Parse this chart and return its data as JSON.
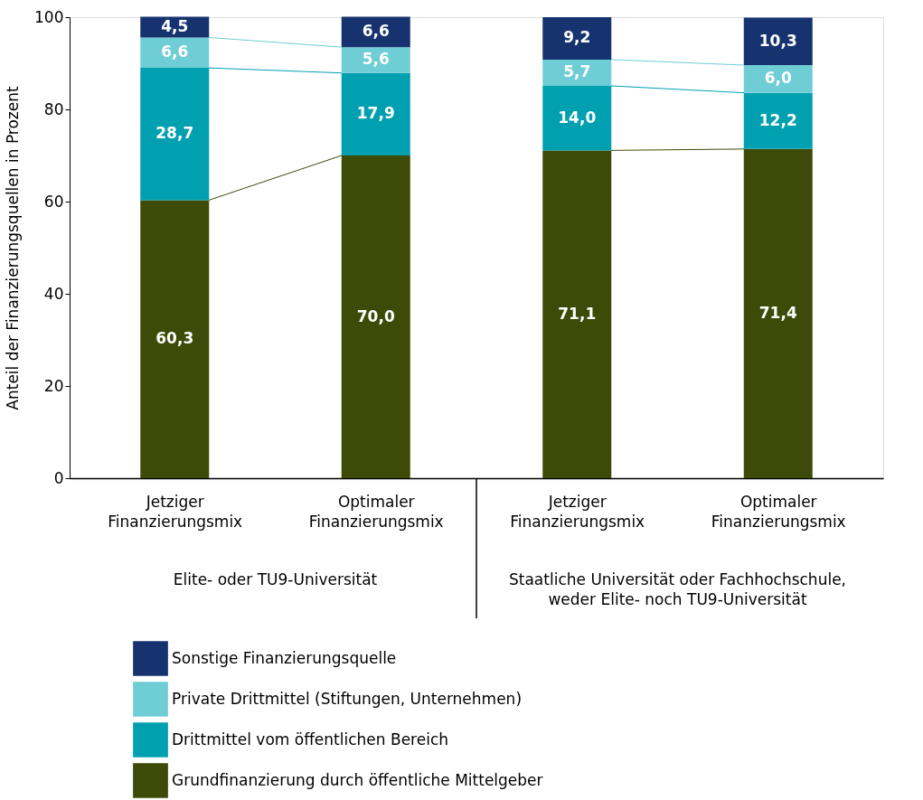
{
  "chart_data": {
    "type": "bar",
    "stacked": true,
    "ylabel": "Anteil der Finanzierungsquellen in Prozent",
    "categories": [
      "Jetziger Finanzierungsmix",
      "Optimaler Finanzierungsmix",
      "Jetziger Finanzierungsmix",
      "Optimaler Finanzierungsmix"
    ],
    "series": [
      {
        "name": "Grundfinanzierung durch öffentliche Mittelgeber",
        "color": "#3d4a08",
        "values": [
          60.3,
          70.0,
          71.1,
          71.4
        ],
        "value_labels": [
          "60,3",
          "70,0",
          "71,1",
          "71,4"
        ]
      },
      {
        "name": "Drittmittel vom öffentlichen Bereich",
        "color": "#00a0b0",
        "values": [
          28.7,
          17.9,
          14.0,
          12.2
        ],
        "value_labels": [
          "28,7",
          "17,9",
          "14,0",
          "12,2"
        ]
      },
      {
        "name": "Private Drittmittel (Stiftungen, Unternehmen)",
        "color": "#6fcdd5",
        "values": [
          6.6,
          5.6,
          5.7,
          6.0
        ],
        "value_labels": [
          "6,6",
          "5,6",
          "5,7",
          "6,0"
        ]
      },
      {
        "name": "Sonstige Finanzierungsquelle",
        "color": "#17336f",
        "values": [
          4.5,
          6.6,
          9.2,
          10.3
        ],
        "value_labels": [
          "4,5",
          "6,6",
          "9,2",
          "10,3"
        ]
      }
    ],
    "ylim": [
      0,
      100
    ],
    "yticks": [
      0,
      20,
      40,
      60,
      80,
      100
    ],
    "grid": false,
    "legend": "bottom",
    "annotations": [
      "Elite- oder TU9-Universität",
      "Staatliche Universität oder Fachhochschule, weder Elite- noch TU9-Universität"
    ]
  }
}
